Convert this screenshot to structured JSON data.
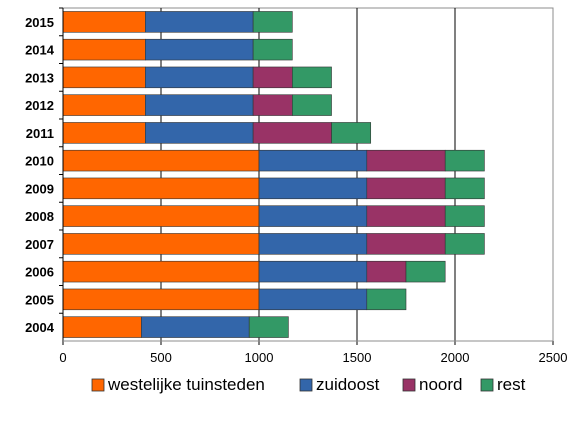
{
  "chart_data": {
    "type": "bar",
    "orientation": "horizontal",
    "stacked": true,
    "title": "",
    "xlabel": "",
    "ylabel": "",
    "xlim": [
      0,
      2500
    ],
    "xticks": [
      "0",
      "500",
      "1000",
      "1500",
      "2000",
      "2500"
    ],
    "grid": "vertical",
    "legend_position": "bottom",
    "categories": [
      "2015",
      "2014",
      "2013",
      "2012",
      "2011",
      "2010",
      "2009",
      "2008",
      "2007",
      "2006",
      "2005",
      "2004"
    ],
    "series": [
      {
        "name": "westelijke tuinsteden",
        "color": "#ff6600",
        "values": [
          420,
          420,
          420,
          420,
          420,
          1000,
          1000,
          1000,
          1000,
          1000,
          1000,
          400
        ]
      },
      {
        "name": "zuidoost",
        "color": "#3366aa",
        "values": [
          550,
          550,
          550,
          550,
          550,
          550,
          550,
          550,
          550,
          550,
          550,
          550
        ]
      },
      {
        "name": "noord",
        "color": "#993366",
        "values": [
          0,
          0,
          200,
          200,
          400,
          400,
          400,
          400,
          400,
          200,
          0,
          0
        ]
      },
      {
        "name": "rest",
        "color": "#339966",
        "values": [
          200,
          200,
          200,
          200,
          200,
          200,
          200,
          200,
          200,
          200,
          200,
          200
        ]
      }
    ]
  }
}
